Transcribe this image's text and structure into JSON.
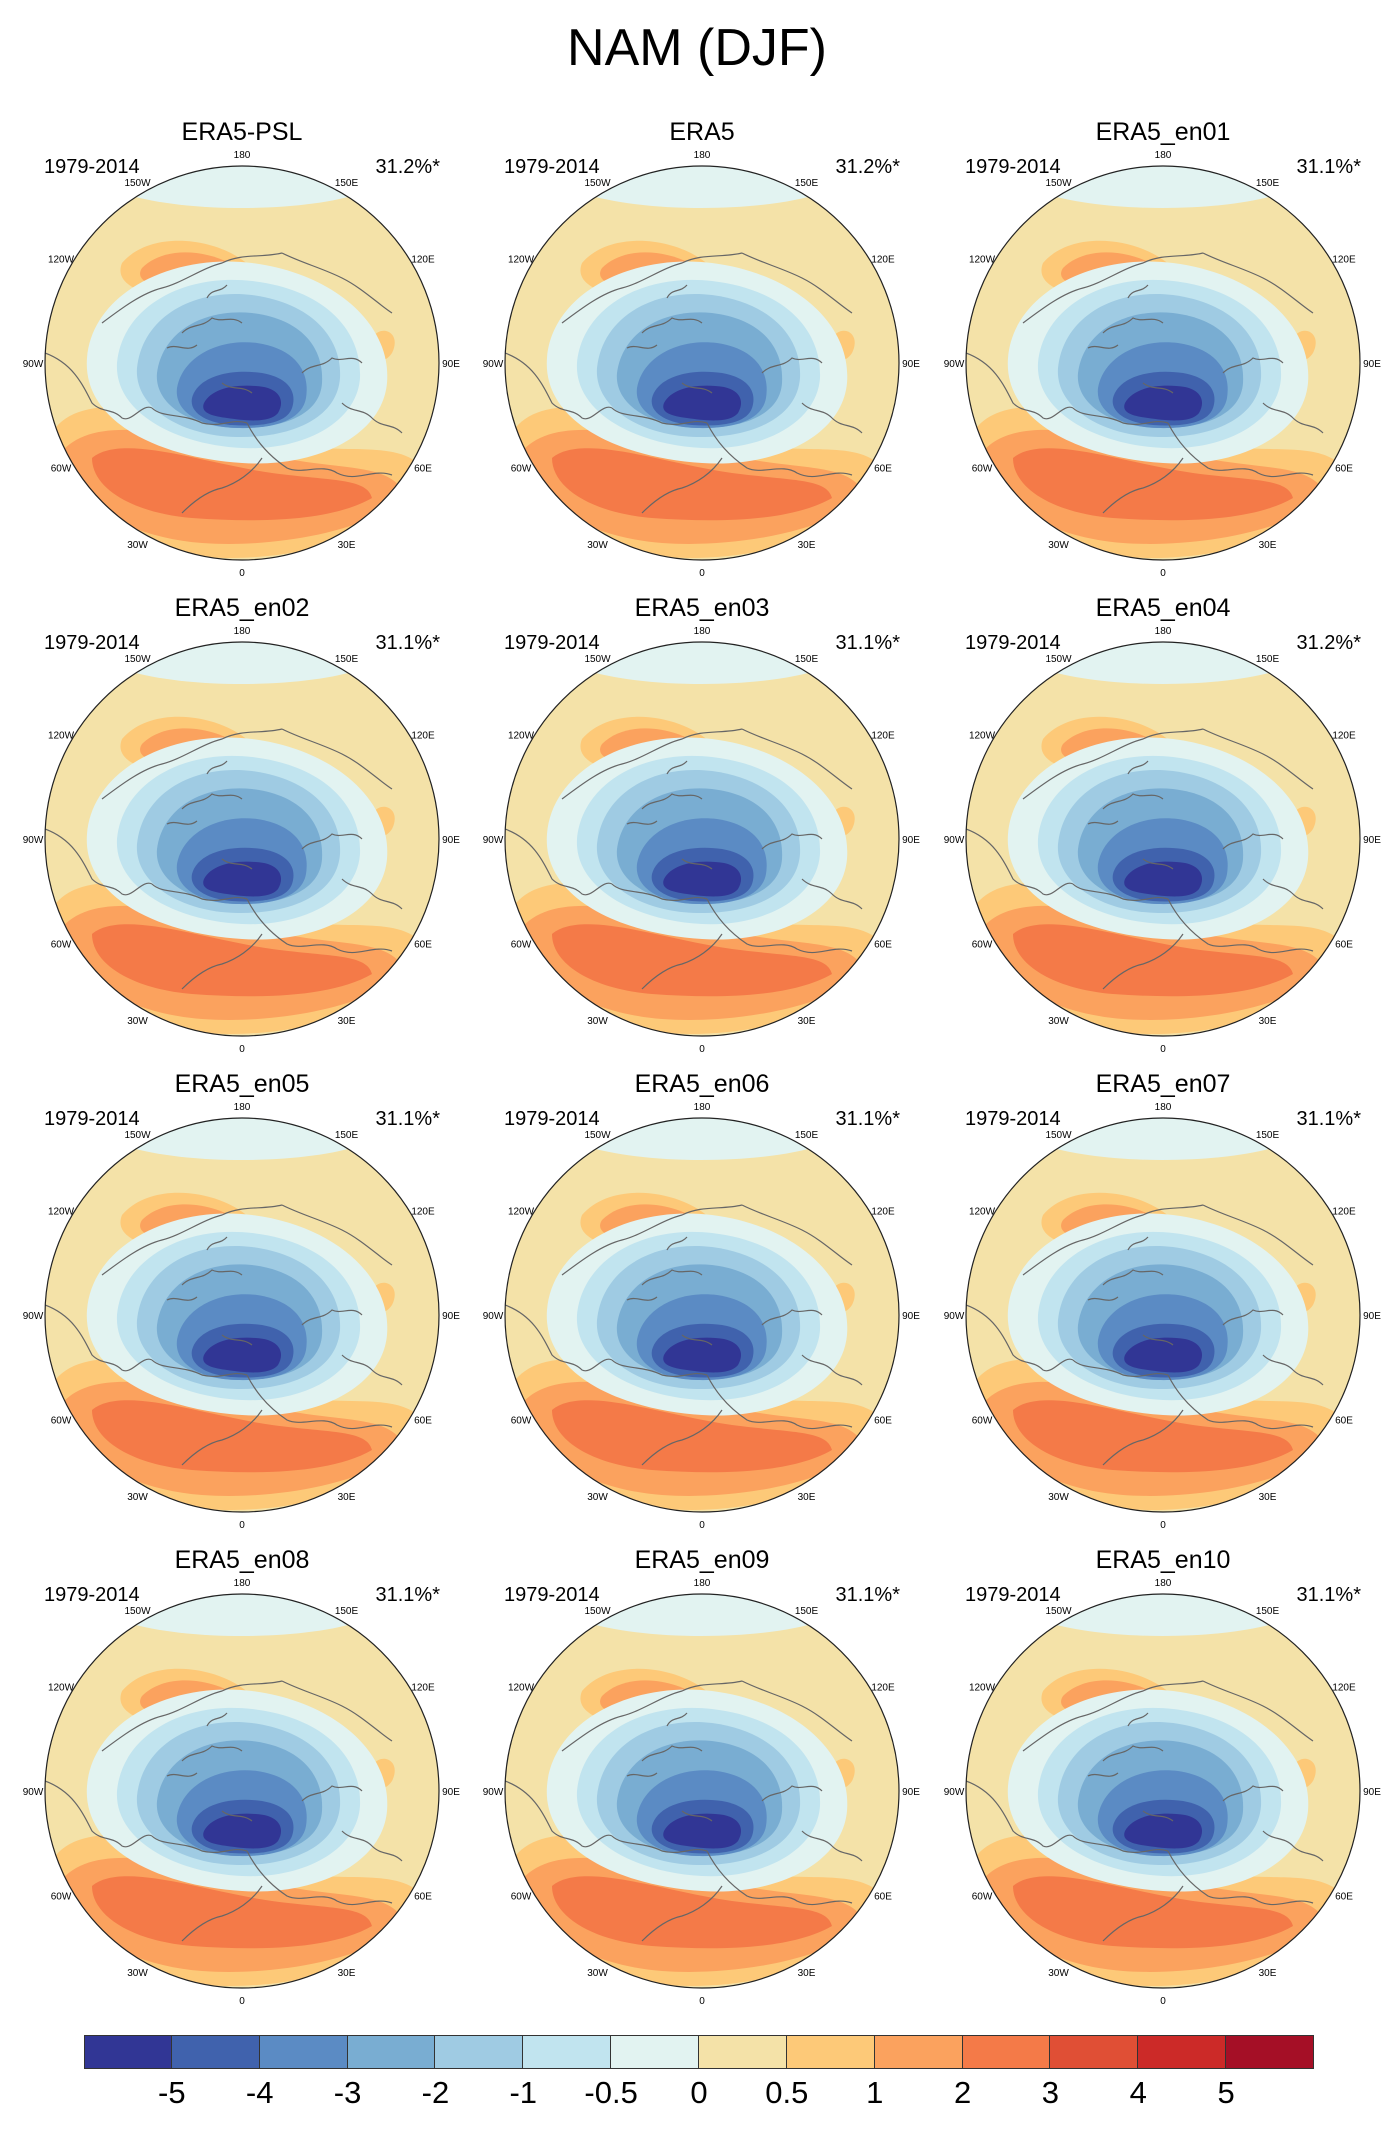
{
  "figure": {
    "title": "NAM (DJF)"
  },
  "panels": [
    {
      "title": "ERA5-PSL",
      "period": "1979-2014",
      "variance": "31.2%*"
    },
    {
      "title": "ERA5",
      "period": "1979-2014",
      "variance": "31.2%*"
    },
    {
      "title": "ERA5_en01",
      "period": "1979-2014",
      "variance": "31.1%*"
    },
    {
      "title": "ERA5_en02",
      "period": "1979-2014",
      "variance": "31.1%*"
    },
    {
      "title": "ERA5_en03",
      "period": "1979-2014",
      "variance": "31.1%*"
    },
    {
      "title": "ERA5_en04",
      "period": "1979-2014",
      "variance": "31.2%*"
    },
    {
      "title": "ERA5_en05",
      "period": "1979-2014",
      "variance": "31.1%*"
    },
    {
      "title": "ERA5_en06",
      "period": "1979-2014",
      "variance": "31.1%*"
    },
    {
      "title": "ERA5_en07",
      "period": "1979-2014",
      "variance": "31.1%*"
    },
    {
      "title": "ERA5_en08",
      "period": "1979-2014",
      "variance": "31.1%*"
    },
    {
      "title": "ERA5_en09",
      "period": "1979-2014",
      "variance": "31.1%*"
    },
    {
      "title": "ERA5_en10",
      "period": "1979-2014",
      "variance": "31.1%*"
    }
  ],
  "longitude_labels": [
    "180",
    "150E",
    "120E",
    "90E",
    "60E",
    "30E",
    "0",
    "30W",
    "60W",
    "90W",
    "120W",
    "150W"
  ],
  "colorbar": {
    "colors": [
      "#313695",
      "#4062ad",
      "#5b8bc4",
      "#79add2",
      "#9fcbe3",
      "#c1e4ef",
      "#e2f3f1",
      "#f4e2a8",
      "#fdc978",
      "#fba25e",
      "#f47a48",
      "#e04f35",
      "#cc2a28",
      "#a50f26"
    ],
    "tick_labels": [
      "-5",
      "-4",
      "-3",
      "-2",
      "-1",
      "-0.5",
      "0",
      "0.5",
      "1",
      "2",
      "3",
      "4",
      "5"
    ]
  }
}
